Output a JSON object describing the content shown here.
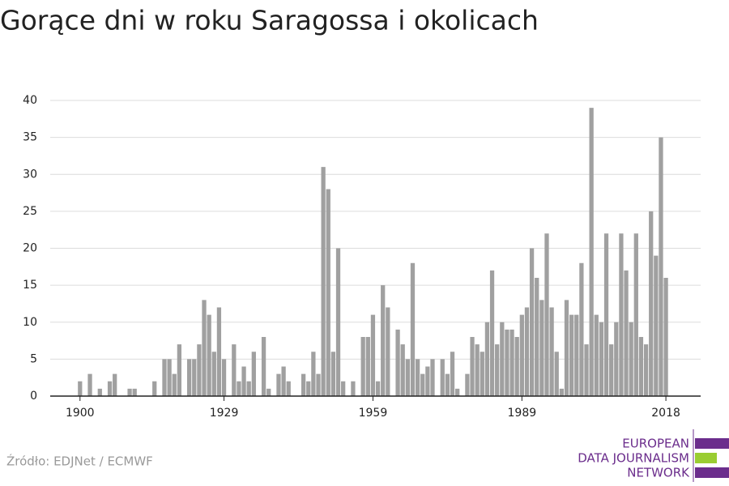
{
  "chart_data": {
    "type": "bar",
    "title": "Gorące dni w roku Saragossa i okolicach",
    "source": "Źródło: EDJNet / ECMWF",
    "logo": [
      "EUROPEAN",
      "DATA JOURNALISM",
      "NETWORK"
    ],
    "color": "#a0a0a0",
    "x": [
      1900,
      1902,
      1904,
      1906,
      1907,
      1910,
      1911,
      1915,
      1917,
      1918,
      1919,
      1920,
      1922,
      1923,
      1924,
      1925,
      1926,
      1927,
      1928,
      1929,
      1931,
      1932,
      1933,
      1934,
      1935,
      1937,
      1938,
      1940,
      1941,
      1942,
      1945,
      1946,
      1947,
      1948,
      1949,
      1950,
      1951,
      1952,
      1953,
      1955,
      1957,
      1958,
      1959,
      1960,
      1961,
      1962,
      1964,
      1965,
      1966,
      1967,
      1968,
      1969,
      1970,
      1971,
      1973,
      1974,
      1975,
      1976,
      1978,
      1979,
      1980,
      1981,
      1982,
      1983,
      1984,
      1985,
      1986,
      1987,
      1988,
      1989,
      1990,
      1991,
      1992,
      1993,
      1994,
      1995,
      1996,
      1997,
      1998,
      1999,
      2000,
      2001,
      2002,
      2003,
      2004,
      2005,
      2006,
      2007,
      2008,
      2009,
      2010,
      2011,
      2012,
      2013,
      2014,
      2015,
      2016,
      2017,
      2018
    ],
    "values": [
      2,
      3,
      1,
      2,
      3,
      1,
      1,
      2,
      5,
      5,
      3,
      7,
      5,
      5,
      7,
      13,
      11,
      6,
      12,
      5,
      7,
      2,
      4,
      2,
      6,
      8,
      1,
      3,
      4,
      2,
      3,
      2,
      6,
      3,
      31,
      28,
      6,
      20,
      2,
      2,
      8,
      8,
      11,
      2,
      15,
      12,
      9,
      7,
      5,
      18,
      5,
      3,
      4,
      5,
      5,
      3,
      6,
      1,
      3,
      8,
      7,
      6,
      10,
      17,
      7,
      10,
      9,
      9,
      8,
      11,
      12,
      20,
      16,
      13,
      22,
      12,
      6,
      1,
      13,
      11,
      11,
      18,
      7,
      39,
      11,
      10,
      22,
      7,
      10,
      22,
      17,
      10,
      22,
      8,
      7,
      25,
      19,
      35,
      16
    ],
    "xlim": [
      1894,
      2025
    ],
    "xticks": [
      1900,
      1929,
      1959,
      1989,
      2018
    ],
    "ylim": [
      0,
      40
    ],
    "yticks": [
      0,
      5,
      10,
      15,
      20,
      25,
      30,
      35,
      40
    ],
    "grid": true
  }
}
